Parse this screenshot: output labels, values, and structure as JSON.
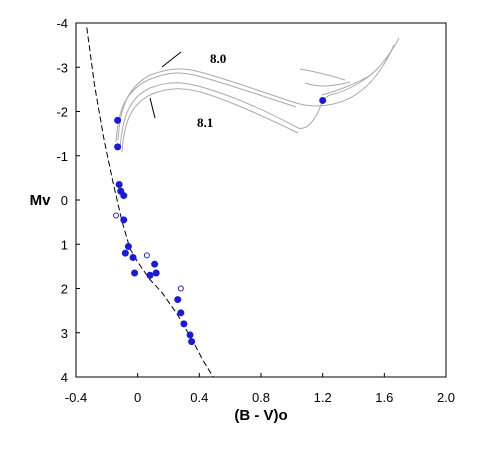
{
  "chart_data": {
    "type": "scatter",
    "title": "",
    "xlabel": "(B - V)o",
    "ylabel": "Mv",
    "xlim": [
      -0.4,
      2.0
    ],
    "ylim": [
      4,
      -4
    ],
    "y_inverted": true,
    "x_ticks": [
      "-0.4",
      "0",
      "0.4",
      "0.8",
      "1.2",
      "1.6",
      "2.0"
    ],
    "y_ticks": [
      "-4",
      "-3",
      "-2",
      "-1",
      "0",
      "1",
      "2",
      "3",
      "4"
    ],
    "grid": false,
    "legend": "none",
    "colors": {
      "points": "#1a1adb",
      "lines": "#000000",
      "isochrones": "#aaaaaa"
    },
    "annotations": [
      "8.0",
      "8.1"
    ],
    "series": [
      {
        "marker": "filled-circle",
        "x": [
          -0.13,
          -0.13,
          -0.12,
          -0.09,
          -0.11,
          -0.09,
          -0.06,
          -0.08,
          -0.03,
          -0.02,
          0.08,
          0.11,
          0.12,
          0.26,
          0.28,
          0.3,
          0.34,
          0.35,
          1.2
        ],
        "y": [
          -1.8,
          -1.2,
          -0.35,
          -0.1,
          -0.2,
          0.45,
          1.05,
          1.2,
          1.3,
          1.65,
          1.7,
          1.45,
          1.65,
          2.25,
          2.55,
          2.8,
          3.05,
          3.2,
          -2.25
        ]
      },
      {
        "marker": "open-circle",
        "x": [
          -0.14,
          0.06,
          0.28
        ],
        "y": [
          0.35,
          1.25,
          2.0
        ]
      },
      {
        "name": "ZAMS",
        "style": "dashed",
        "x": [
          -0.33,
          -0.28,
          -0.22,
          -0.16,
          -0.1,
          -0.05,
          0.0,
          0.08,
          0.16,
          0.26,
          0.36,
          0.42,
          0.49
        ],
        "y": [
          -3.9,
          -2.6,
          -1.4,
          -0.4,
          0.5,
          1.1,
          1.4,
          1.8,
          2.1,
          2.6,
          3.2,
          3.6,
          4.0
        ]
      }
    ]
  }
}
